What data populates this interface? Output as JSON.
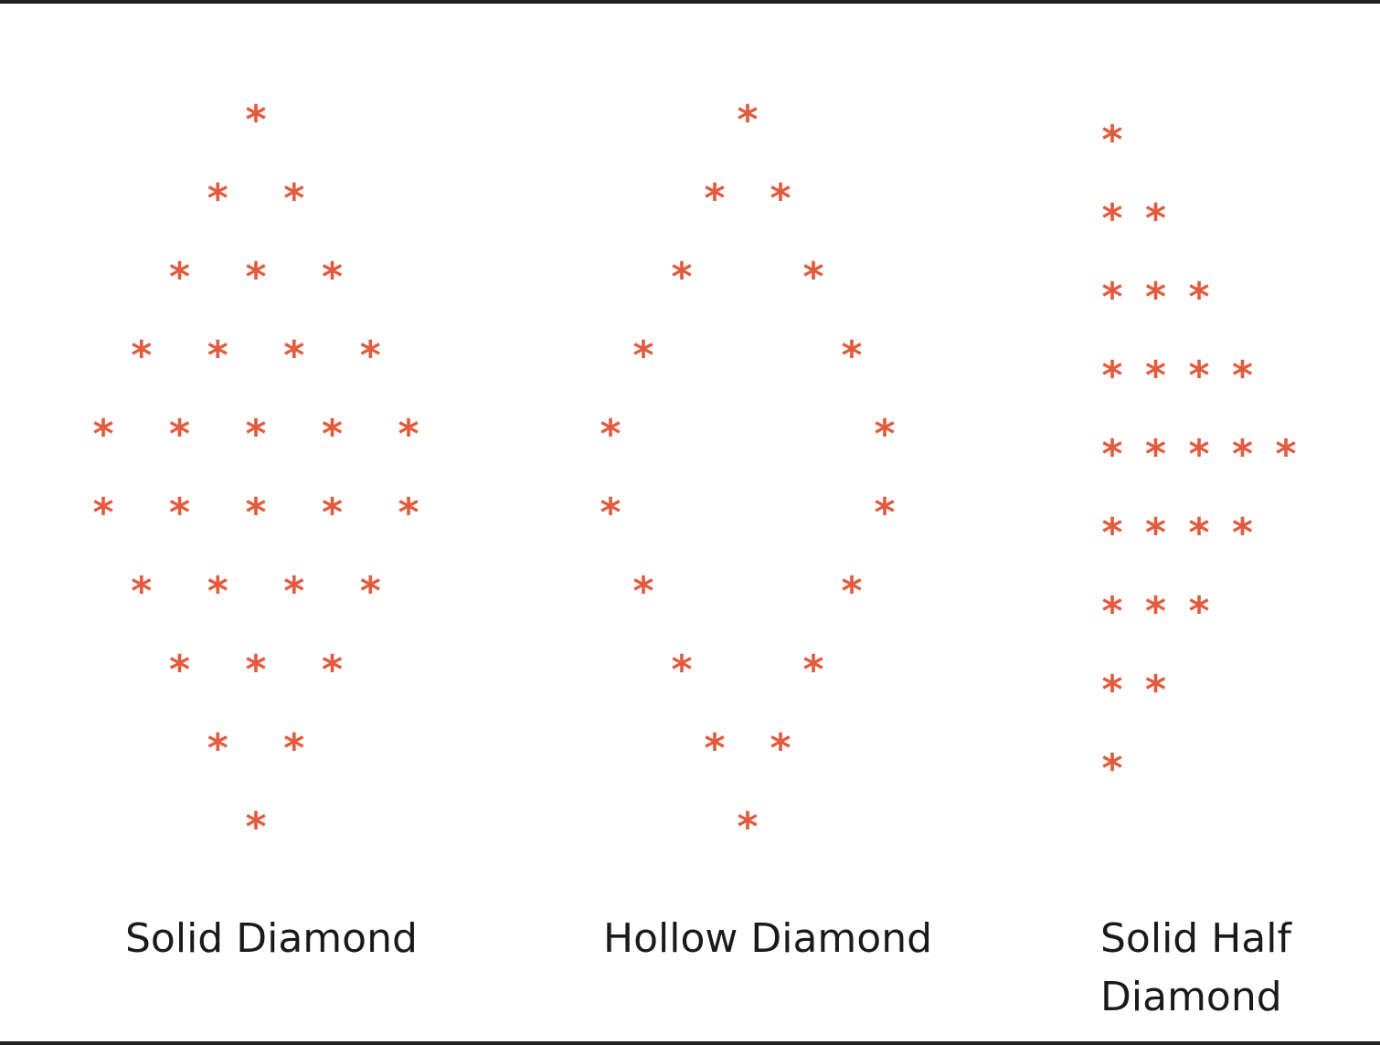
{
  "diagram": {
    "symbol": "*",
    "symbol_color": "#e35b3f",
    "patterns": [
      {
        "id": "solid",
        "caption": "Solid Diamond",
        "rows": [
          [
            1,
            0,
            0,
            0,
            0
          ],
          [
            1,
            1,
            0,
            0,
            0
          ],
          [
            1,
            1,
            1,
            0,
            0
          ],
          [
            1,
            1,
            1,
            1,
            0
          ],
          [
            1,
            1,
            1,
            1,
            1
          ],
          [
            1,
            1,
            1,
            1,
            1
          ],
          [
            1,
            1,
            1,
            1,
            0
          ],
          [
            1,
            1,
            1,
            0,
            0
          ],
          [
            1,
            1,
            0,
            0,
            0
          ],
          [
            1,
            0,
            0,
            0,
            0
          ]
        ]
      },
      {
        "id": "hollow",
        "caption": "Hollow Diamond",
        "rows": [
          [
            1,
            0,
            0,
            0,
            0
          ],
          [
            1,
            1,
            0,
            0,
            0
          ],
          [
            1,
            0,
            1,
            0,
            0
          ],
          [
            1,
            0,
            0,
            1,
            0
          ],
          [
            1,
            0,
            0,
            0,
            1
          ],
          [
            1,
            0,
            0,
            0,
            1
          ],
          [
            1,
            0,
            0,
            1,
            0
          ],
          [
            1,
            0,
            1,
            0,
            0
          ],
          [
            1,
            1,
            0,
            0,
            0
          ],
          [
            1,
            0,
            0,
            0,
            0
          ]
        ]
      },
      {
        "id": "half",
        "caption": "Solid Half Diamond",
        "rows": [
          [
            1
          ],
          [
            1,
            1
          ],
          [
            1,
            1,
            1
          ],
          [
            1,
            1,
            1,
            1
          ],
          [
            1,
            1,
            1,
            1,
            1
          ],
          [
            1,
            1,
            1,
            1
          ],
          [
            1,
            1,
            1
          ],
          [
            1,
            1
          ],
          [
            1
          ]
        ]
      }
    ]
  }
}
